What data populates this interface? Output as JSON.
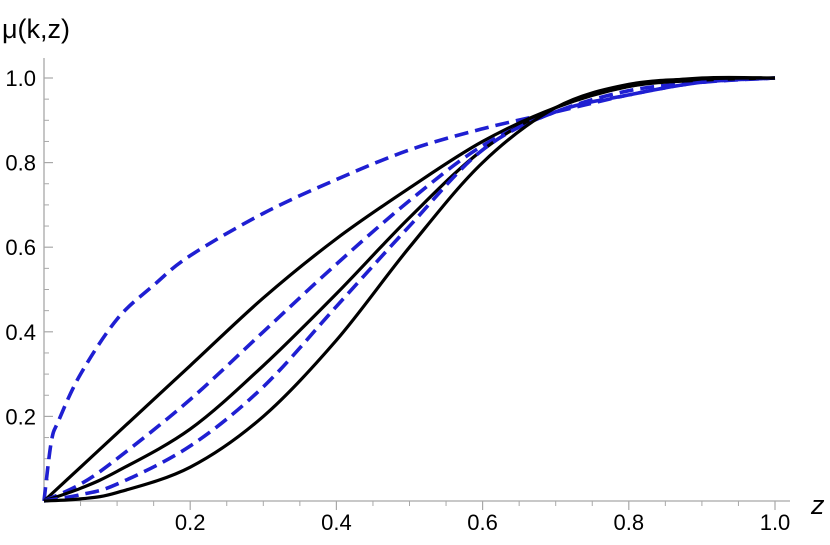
{
  "chart_data": {
    "type": "line",
    "title": "",
    "xlabel": "z",
    "ylabel": "μ(k,z)",
    "xlim": [
      0,
      1.0
    ],
    "ylim": [
      0,
      1.05
    ],
    "grid": false,
    "x_ticks": [
      0.2,
      0.4,
      0.6,
      0.8,
      1.0
    ],
    "x_tick_labels": [
      "0.2",
      "0.4",
      "0.6",
      "0.8",
      "1.0"
    ],
    "y_ticks": [
      0.2,
      0.4,
      0.6,
      0.8,
      1.0
    ],
    "y_tick_labels": [
      "0.2",
      "0.4",
      "0.6",
      "0.8",
      "1.0"
    ],
    "colors": {
      "solid": "#000000",
      "dashed": "#1f1fd2"
    },
    "series": [
      {
        "style": "dashed",
        "color": "#1f1fd2",
        "x": [
          0,
          0.01,
          0.02,
          0.05,
          0.1,
          0.15,
          0.2,
          0.3,
          0.4,
          0.5,
          0.6,
          0.7,
          0.8,
          0.9,
          1.0
        ],
        "y": [
          0,
          0.14,
          0.19,
          0.3,
          0.43,
          0.51,
          0.58,
          0.68,
          0.76,
          0.83,
          0.88,
          0.92,
          0.96,
          0.99,
          1.0
        ]
      },
      {
        "style": "solid",
        "color": "#000000",
        "x": [
          0,
          0.05,
          0.1,
          0.2,
          0.3,
          0.4,
          0.5,
          0.6,
          0.7,
          0.8,
          0.9,
          1.0
        ],
        "y": [
          0,
          0.08,
          0.16,
          0.32,
          0.48,
          0.62,
          0.74,
          0.85,
          0.93,
          0.98,
          1.0,
          1.0
        ]
      },
      {
        "style": "dashed",
        "color": "#1f1fd2",
        "x": [
          0,
          0.05,
          0.1,
          0.2,
          0.3,
          0.4,
          0.5,
          0.6,
          0.7,
          0.8,
          0.9,
          1.0
        ],
        "y": [
          0,
          0.04,
          0.1,
          0.24,
          0.4,
          0.56,
          0.71,
          0.84,
          0.92,
          0.97,
          0.99,
          1.0
        ]
      },
      {
        "style": "solid",
        "color": "#000000",
        "x": [
          0,
          0.05,
          0.1,
          0.2,
          0.3,
          0.4,
          0.5,
          0.6,
          0.7,
          0.8,
          0.9,
          1.0
        ],
        "y": [
          0,
          0.03,
          0.07,
          0.17,
          0.32,
          0.49,
          0.67,
          0.83,
          0.93,
          0.98,
          0.995,
          1.0
        ]
      },
      {
        "style": "dashed",
        "color": "#1f1fd2",
        "x": [
          0,
          0.05,
          0.1,
          0.2,
          0.3,
          0.4,
          0.5,
          0.6,
          0.7,
          0.8,
          0.9,
          1.0
        ],
        "y": [
          0,
          0.015,
          0.04,
          0.13,
          0.27,
          0.46,
          0.65,
          0.83,
          0.92,
          0.96,
          0.99,
          1.0
        ]
      },
      {
        "style": "solid",
        "color": "#000000",
        "x": [
          0,
          0.05,
          0.1,
          0.2,
          0.3,
          0.4,
          0.5,
          0.6,
          0.7,
          0.8,
          0.9,
          1.0
        ],
        "y": [
          0,
          0.005,
          0.02,
          0.08,
          0.2,
          0.38,
          0.6,
          0.8,
          0.93,
          0.985,
          0.998,
          1.0
        ]
      }
    ]
  }
}
